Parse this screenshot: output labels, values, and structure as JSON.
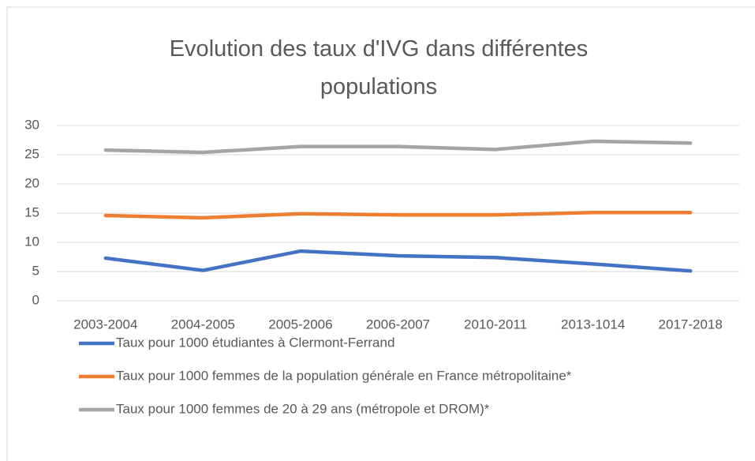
{
  "chart_data": {
    "type": "line",
    "title": "Evolution des taux d'IVG dans différentes populations",
    "categories": [
      "2003-2004",
      "2004-2005",
      "2005-2006",
      "2006-2007",
      "2010-2011",
      "2013-1014",
      "2017-2018"
    ],
    "series": [
      {
        "name": "Taux pour 1000 étudiantes à Clermont-Ferrand",
        "color": "#4472c4",
        "values": [
          7.3,
          5.2,
          8.5,
          7.7,
          7.4,
          6.3,
          5.1
        ]
      },
      {
        "name": "Taux pour 1000 femmes de la population générale en France métropolitaine*",
        "color": "#ed7d31",
        "values": [
          14.6,
          14.2,
          14.9,
          14.7,
          14.7,
          15.1,
          15.1
        ]
      },
      {
        "name": "Taux pour 1000 femmes de 20 à 29 ans (métropole et DROM)*",
        "color": "#a5a5a5",
        "values": [
          25.8,
          25.4,
          26.4,
          26.4,
          25.9,
          27.3,
          27.0
        ]
      }
    ],
    "ylim": [
      0,
      30
    ],
    "yticks": [
      0,
      5,
      10,
      15,
      20,
      25,
      30
    ],
    "grid": true,
    "legend": "bottom"
  }
}
